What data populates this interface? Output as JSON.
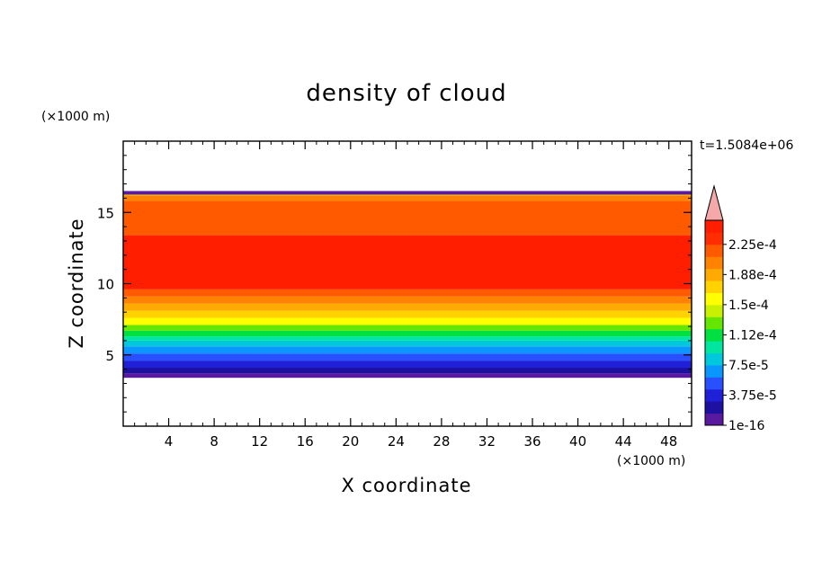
{
  "chart_data": {
    "type": "heatmap",
    "title": "density of cloud",
    "xlabel": "X coordinate",
    "ylabel": "Z coordinate",
    "x_unit": "(×1000 m)",
    "y_unit": "(×1000 m)",
    "time_label": "t=1.5084e+06",
    "xlim": [
      0,
      50
    ],
    "ylim": [
      0,
      20
    ],
    "x_ticks": [
      4,
      8,
      12,
      16,
      20,
      24,
      28,
      32,
      36,
      40,
      44,
      48
    ],
    "x_tick_labels": [
      "4",
      "8",
      "12",
      "16",
      "20",
      "24",
      "28",
      "32",
      "36",
      "40",
      "44",
      "48"
    ],
    "y_ticks": [
      5,
      10,
      15
    ],
    "y_tick_labels": [
      "5",
      "10",
      "15"
    ],
    "colorbar": {
      "levels": [
        "1e-16",
        "3.75e-5",
        "7.5e-5",
        "1.12e-4",
        "1.5e-4",
        "1.88e-4",
        "2.25e-4"
      ],
      "level_values": [
        1e-16,
        3.75e-05,
        7.5e-05,
        0.000112,
        0.00015,
        0.000188,
        0.000225
      ],
      "colors": [
        "#5a1aa0",
        "#1e10a0",
        "#2020d8",
        "#2850ff",
        "#0a96ff",
        "#00c8dc",
        "#00e6a0",
        "#00e040",
        "#64e600",
        "#c8f000",
        "#ffff00",
        "#ffd200",
        "#ffaa00",
        "#ff8200",
        "#ff5a00",
        "#ff2d00",
        "#ff1e00"
      ],
      "extend_color": "#f4a8a8"
    },
    "cloud_extent": {
      "base_z": 3.4,
      "top_z": 16.5
    },
    "profile_z_bands": [
      {
        "z": 3.4,
        "level": 0
      },
      {
        "z": 3.7,
        "level": 1
      },
      {
        "z": 4.1,
        "level": 2
      },
      {
        "z": 4.6,
        "level": 3
      },
      {
        "z": 5.1,
        "level": 4
      },
      {
        "z": 5.6,
        "level": 5
      },
      {
        "z": 6.0,
        "level": 6
      },
      {
        "z": 6.3,
        "level": 7
      },
      {
        "z": 6.7,
        "level": 8
      },
      {
        "z": 7.1,
        "level": 10
      },
      {
        "z": 7.6,
        "level": 11
      },
      {
        "z": 8.1,
        "level": 12
      },
      {
        "z": 8.6,
        "level": 13
      },
      {
        "z": 9.1,
        "level": 14
      },
      {
        "z": 9.6,
        "level": 16
      },
      {
        "z": 13.4,
        "level": 14
      },
      {
        "z": 15.8,
        "level": 13
      },
      {
        "z": 16.2,
        "level": 11
      },
      {
        "z": 16.5,
        "level": 0
      }
    ]
  }
}
